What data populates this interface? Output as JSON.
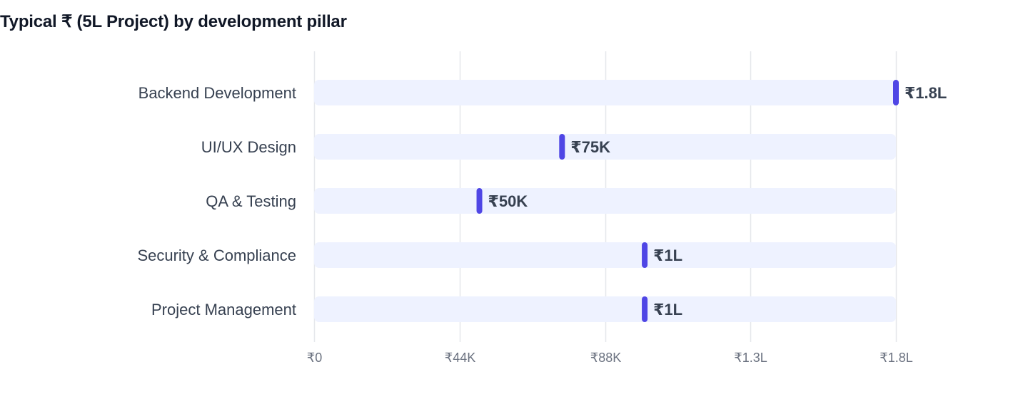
{
  "chart_data": {
    "type": "bar",
    "title": "Typical ₹ (5L Project) by development pillar",
    "orientation": "horizontal",
    "categories": [
      "Backend Development",
      "UI/UX Design",
      "QA & Testing",
      "Security & Compliance",
      "Project Management"
    ],
    "values": [
      176000,
      75000,
      50000,
      100000,
      100000
    ],
    "value_labels": [
      "₹1.8L",
      "₹75K",
      "₹50K",
      "₹1L",
      "₹1L"
    ],
    "xlim": [
      0,
      176000
    ],
    "x_ticks": [
      0,
      44000,
      88000,
      132000,
      176000
    ],
    "x_tick_labels": [
      "₹0",
      "₹44K",
      "₹88K",
      "₹1.3L",
      "₹1.8L"
    ],
    "xlabel": "",
    "ylabel": "",
    "grid": true,
    "legend": "none",
    "colors": {
      "marker": "#4F46E5",
      "track": "#EEF2FF",
      "grid": "#E5E7EB",
      "category_label": "#374151",
      "tick_label": "#6B7280",
      "value_label": "#374151",
      "title": "#111827"
    }
  }
}
